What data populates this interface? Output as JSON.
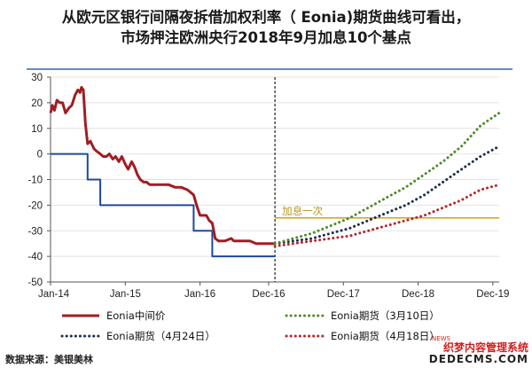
{
  "chart_data": {
    "type": "line",
    "title_lines": [
      "从欧元区银行间隔夜拆借加权利率（ Eonia)期货曲线可看出，",
      "市场押注欧洲央行2018年9月加息10个基点"
    ],
    "x_ticks": [
      "Jan-14",
      "Jan-15",
      "Jan-16",
      "Dec-16",
      "Dec-17",
      "Dec-18",
      "Dec-19"
    ],
    "x_tick_dates": [
      "2014-01",
      "2015-01",
      "2016-01",
      "2016-12",
      "2017-12",
      "2018-12",
      "2019-12"
    ],
    "ylim": [
      -50,
      30
    ],
    "y_ticks": [
      30,
      20,
      10,
      0,
      -10,
      -20,
      -30,
      -40,
      -50
    ],
    "vline_at": "2017-01",
    "annotation": {
      "text": "加息一次",
      "y": -25
    },
    "series": [
      {
        "name": "Eonia中间价",
        "style": "solid",
        "color": "#a11d23",
        "points": [
          [
            "2014-01",
            16
          ],
          [
            "2014-01-10",
            19
          ],
          [
            "2014-01-20",
            17
          ],
          [
            "2014-02",
            21
          ],
          [
            "2014-02-15",
            20
          ],
          [
            "2014-03",
            20
          ],
          [
            "2014-03-15",
            16
          ],
          [
            "2014-04",
            18
          ],
          [
            "2014-04-15",
            19
          ],
          [
            "2014-05",
            23
          ],
          [
            "2014-05-15",
            25
          ],
          [
            "2014-05-25",
            24
          ],
          [
            "2014-06",
            26
          ],
          [
            "2014-06-10",
            25
          ],
          [
            "2014-06-20",
            12
          ],
          [
            "2014-07",
            4
          ],
          [
            "2014-07-15",
            5
          ],
          [
            "2014-08",
            2
          ],
          [
            "2014-08-15",
            1
          ],
          [
            "2014-09",
            0
          ],
          [
            "2014-09-15",
            -1
          ],
          [
            "2014-10",
            -1
          ],
          [
            "2014-10-15",
            0
          ],
          [
            "2014-11",
            -2
          ],
          [
            "2014-11-15",
            -1
          ],
          [
            "2014-12",
            -3
          ],
          [
            "2014-12-15",
            -1
          ],
          [
            "2015-01",
            -4
          ],
          [
            "2015-01-15",
            -6
          ],
          [
            "2015-02",
            -3
          ],
          [
            "2015-02-15",
            -5
          ],
          [
            "2015-03",
            -8
          ],
          [
            "2015-03-15",
            -10
          ],
          [
            "2015-04",
            -11
          ],
          [
            "2015-04-15",
            -11
          ],
          [
            "2015-05",
            -12
          ],
          [
            "2015-06",
            -12
          ],
          [
            "2015-07",
            -12
          ],
          [
            "2015-08",
            -12
          ],
          [
            "2015-09",
            -13
          ],
          [
            "2015-10",
            -13
          ],
          [
            "2015-11",
            -14
          ],
          [
            "2015-12",
            -16
          ],
          [
            "2015-12-15",
            -20
          ],
          [
            "2016-01",
            -24
          ],
          [
            "2016-02",
            -24
          ],
          [
            "2016-02-15",
            -26
          ],
          [
            "2016-03",
            -27
          ],
          [
            "2016-03-15",
            -33
          ],
          [
            "2016-04",
            -34
          ],
          [
            "2016-05",
            -34
          ],
          [
            "2016-06",
            -33
          ],
          [
            "2016-06-15",
            -34
          ],
          [
            "2016-07",
            -34
          ],
          [
            "2016-08",
            -34
          ],
          [
            "2016-09",
            -34
          ],
          [
            "2016-10",
            -35
          ],
          [
            "2016-11",
            -35
          ],
          [
            "2016-12",
            -35
          ],
          [
            "2017-01",
            -35
          ]
        ]
      },
      {
        "name": "Eonia期货（3月10日）",
        "style": "dotted",
        "color": "#4e8c2b",
        "points": [
          [
            "2017-01",
            -35
          ],
          [
            "2017-04",
            -33
          ],
          [
            "2017-07",
            -31
          ],
          [
            "2017-10",
            -28
          ],
          [
            "2018-01",
            -25
          ],
          [
            "2018-04",
            -21
          ],
          [
            "2018-07",
            -17
          ],
          [
            "2018-10",
            -13
          ],
          [
            "2019-01",
            -8
          ],
          [
            "2019-04",
            -3
          ],
          [
            "2019-07",
            3
          ],
          [
            "2019-10",
            11
          ],
          [
            "2020-01",
            16
          ]
        ]
      },
      {
        "name": "Eonia期货（4月24日）",
        "style": "dotted",
        "color": "#1f2d4d",
        "points": [
          [
            "2017-01",
            -35
          ],
          [
            "2017-04",
            -34
          ],
          [
            "2017-07",
            -33
          ],
          [
            "2017-10",
            -31
          ],
          [
            "2018-01",
            -29
          ],
          [
            "2018-04",
            -26
          ],
          [
            "2018-07",
            -23
          ],
          [
            "2018-10",
            -20
          ],
          [
            "2019-01",
            -16
          ],
          [
            "2019-04",
            -11
          ],
          [
            "2019-07",
            -6
          ],
          [
            "2019-10",
            -1
          ],
          [
            "2020-01",
            3
          ]
        ]
      },
      {
        "name": "Eonia期货（4月18日）",
        "style": "dotted",
        "color": "#b5262a",
        "points": [
          [
            "2017-01",
            -36
          ],
          [
            "2017-04",
            -35
          ],
          [
            "2017-07",
            -34
          ],
          [
            "2017-10",
            -33
          ],
          [
            "2018-01",
            -32
          ],
          [
            "2018-04",
            -30
          ],
          [
            "2018-07",
            -28
          ],
          [
            "2018-10",
            -26
          ],
          [
            "2019-01",
            -24
          ],
          [
            "2019-04",
            -21
          ],
          [
            "2019-07",
            -18
          ],
          [
            "2019-10",
            -14
          ],
          [
            "2020-01",
            -12
          ]
        ]
      },
      {
        "name": "",
        "style": "step",
        "color": "#1c4a9c",
        "points": [
          [
            "2014-01",
            0
          ],
          [
            "2014-07",
            0
          ],
          [
            "2014-07",
            -10
          ],
          [
            "2014-09",
            -10
          ],
          [
            "2014-09",
            -20
          ],
          [
            "2015-12",
            -20
          ],
          [
            "2015-12",
            -30
          ],
          [
            "2016-03",
            -30
          ],
          [
            "2016-03",
            -40
          ],
          [
            "2017-01",
            -40
          ]
        ]
      },
      {
        "name": "",
        "style": "solid",
        "color": "#d4a017",
        "points": [
          [
            "2017-01",
            -25
          ],
          [
            "2020-01",
            -25
          ]
        ]
      }
    ],
    "legend_order": [
      0,
      1,
      2,
      3
    ]
  },
  "source_text": "数据来源：美银美林",
  "watermark": {
    "line1": "织梦内容管理系统",
    "line2": "DEDECMS.COM",
    "badge": "NEWS"
  }
}
